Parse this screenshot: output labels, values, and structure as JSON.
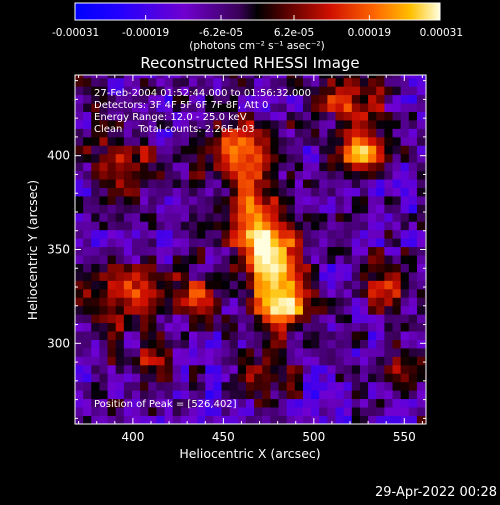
{
  "chart_data": {
    "type": "heatmap",
    "title": "Reconstructed RHESSI Image",
    "xlabel": "Heliocentric X (arcsec)",
    "ylabel": "Heliocentric Y (arcsec)",
    "xlim": [
      368,
      562
    ],
    "ylim": [
      257,
      443
    ],
    "x_ticks": [
      "400",
      "450",
      "500",
      "550"
    ],
    "x_tick_values": [
      400,
      450,
      500,
      550
    ],
    "y_ticks": [
      "300",
      "350",
      "400"
    ],
    "y_tick_values": [
      300,
      350,
      400
    ],
    "colorbar": {
      "min": -0.00031,
      "max": 0.00031,
      "tick_labels": [
        "-0.00031",
        "-0.00019",
        "-6.2e-05",
        "6.2e-05",
        "0.00019",
        "0.00031"
      ],
      "tick_values": [
        -0.00031,
        -0.00019,
        -6.2e-05,
        6.2e-05,
        0.00019,
        0.00031
      ],
      "unit_label": "(photons cm⁻² s⁻¹ asec⁻²)"
    },
    "annotations": {
      "time_range": "27-Feb-2004 01:52:44.000 to 01:56:32.000",
      "detectors": "Detectors: 3F 4F 5F 6F 7F 8F, Att 0",
      "energy_range": "Energy Range: 12.0 - 25.0 keV",
      "clean_counts": "Clean     Total counts: 2.26E+03",
      "peak_position": "Position of Peak = [526,402]"
    },
    "peak": [
      526,
      402
    ],
    "emission_sources": [
      {
        "x": 465,
        "y": 375,
        "sx": 10,
        "sy": 22,
        "amp": 0.7
      },
      {
        "x": 478,
        "y": 345,
        "sx": 11,
        "sy": 16,
        "amp": 0.95
      },
      {
        "x": 484,
        "y": 318,
        "sx": 11,
        "sy": 9,
        "amp": 0.8
      },
      {
        "x": 455,
        "y": 405,
        "sx": 14,
        "sy": 9,
        "amp": 0.55
      },
      {
        "x": 526,
        "y": 402,
        "sx": 9,
        "sy": 8,
        "amp": 1.0
      },
      {
        "x": 520,
        "y": 428,
        "sx": 12,
        "sy": 10,
        "amp": 0.6
      },
      {
        "x": 395,
        "y": 325,
        "sx": 16,
        "sy": 12,
        "amp": 0.6
      },
      {
        "x": 435,
        "y": 325,
        "sx": 9,
        "sy": 9,
        "amp": 0.55
      },
      {
        "x": 395,
        "y": 395,
        "sx": 12,
        "sy": 14,
        "amp": 0.5
      },
      {
        "x": 410,
        "y": 290,
        "sx": 10,
        "sy": 8,
        "amp": 0.45
      },
      {
        "x": 540,
        "y": 330,
        "sx": 12,
        "sy": 10,
        "amp": 0.5
      },
      {
        "x": 550,
        "y": 285,
        "sx": 9,
        "sy": 10,
        "amp": 0.45
      },
      {
        "x": 475,
        "y": 285,
        "sx": 12,
        "sy": 8,
        "amp": 0.45
      }
    ]
  },
  "footer": {
    "date_stamp": "29-Apr-2022 00:28"
  }
}
